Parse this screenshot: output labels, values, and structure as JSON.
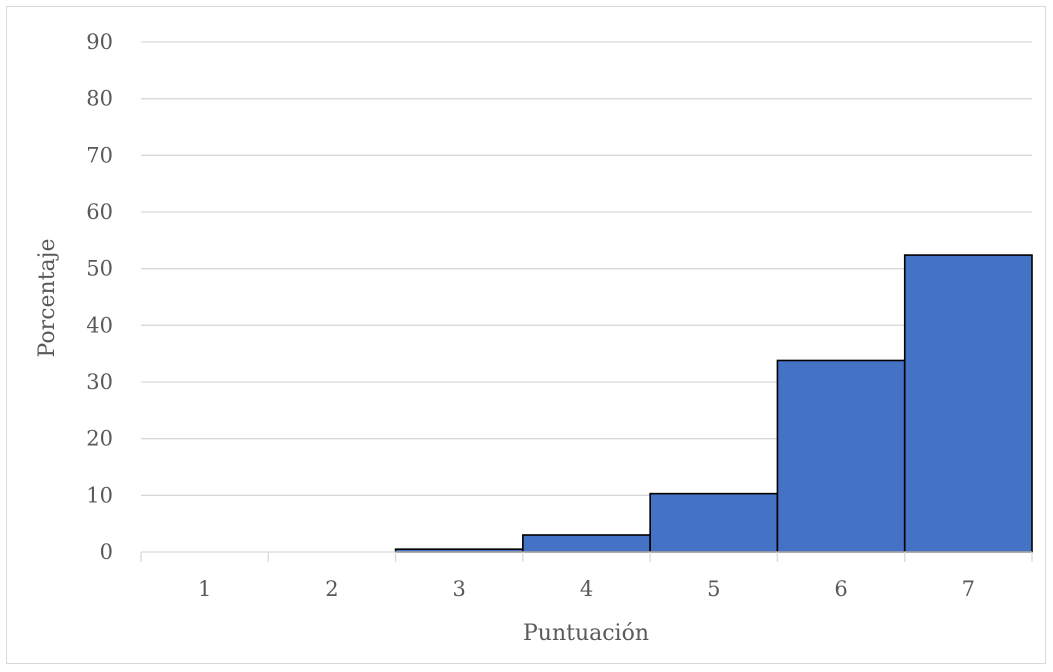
{
  "chart_data": {
    "type": "bar",
    "categories": [
      "1",
      "2",
      "3",
      "4",
      "5",
      "6",
      "7"
    ],
    "values": [
      0,
      0,
      0.5,
      3,
      10.3,
      33.8,
      52.4
    ],
    "xlabel": "Puntuación",
    "ylabel": "Porcentaje",
    "ylim": [
      0,
      90
    ],
    "yticks": [
      "0",
      "10",
      "20",
      "30",
      "40",
      "50",
      "60",
      "70",
      "80",
      "90"
    ],
    "grid": true,
    "legend": "none",
    "bar_color": "#4472c4",
    "bar_outline_color": "#000000",
    "grid_color": "#d9d9d9",
    "text_color": "#595959"
  }
}
